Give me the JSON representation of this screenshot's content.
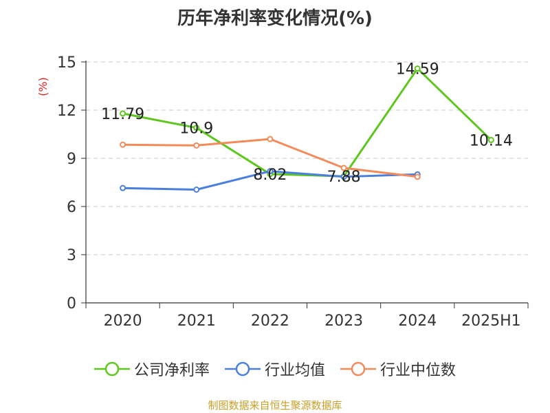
{
  "chart_data": {
    "type": "line",
    "title": "历年净利率变化情况(%)",
    "ylabel": "(%)",
    "xlabel": "",
    "categories": [
      "2020",
      "2021",
      "2022",
      "2023",
      "2024",
      "2025H1"
    ],
    "ylim": [
      0,
      15
    ],
    "yticks": [
      0,
      3,
      6,
      9,
      12,
      15
    ],
    "grid": true,
    "legend_position": "bottom",
    "series": [
      {
        "name": "公司净利率",
        "color": "#5ec71f",
        "values": [
          11.79,
          10.9,
          8.02,
          7.88,
          14.59,
          10.14
        ],
        "labels": [
          "11.79",
          "10.9",
          "8.02",
          "7.88",
          "14.59",
          "10.14"
        ]
      },
      {
        "name": "行业均值",
        "color": "#4a7fdc",
        "values": [
          7.15,
          7.05,
          8.2,
          7.85,
          8.0,
          null
        ]
      },
      {
        "name": "行业中位数",
        "color": "#f38a5a",
        "values": [
          9.85,
          9.8,
          10.2,
          8.4,
          7.85,
          null
        ]
      }
    ]
  },
  "source_note": "制图数据来自恒生聚源数据库"
}
